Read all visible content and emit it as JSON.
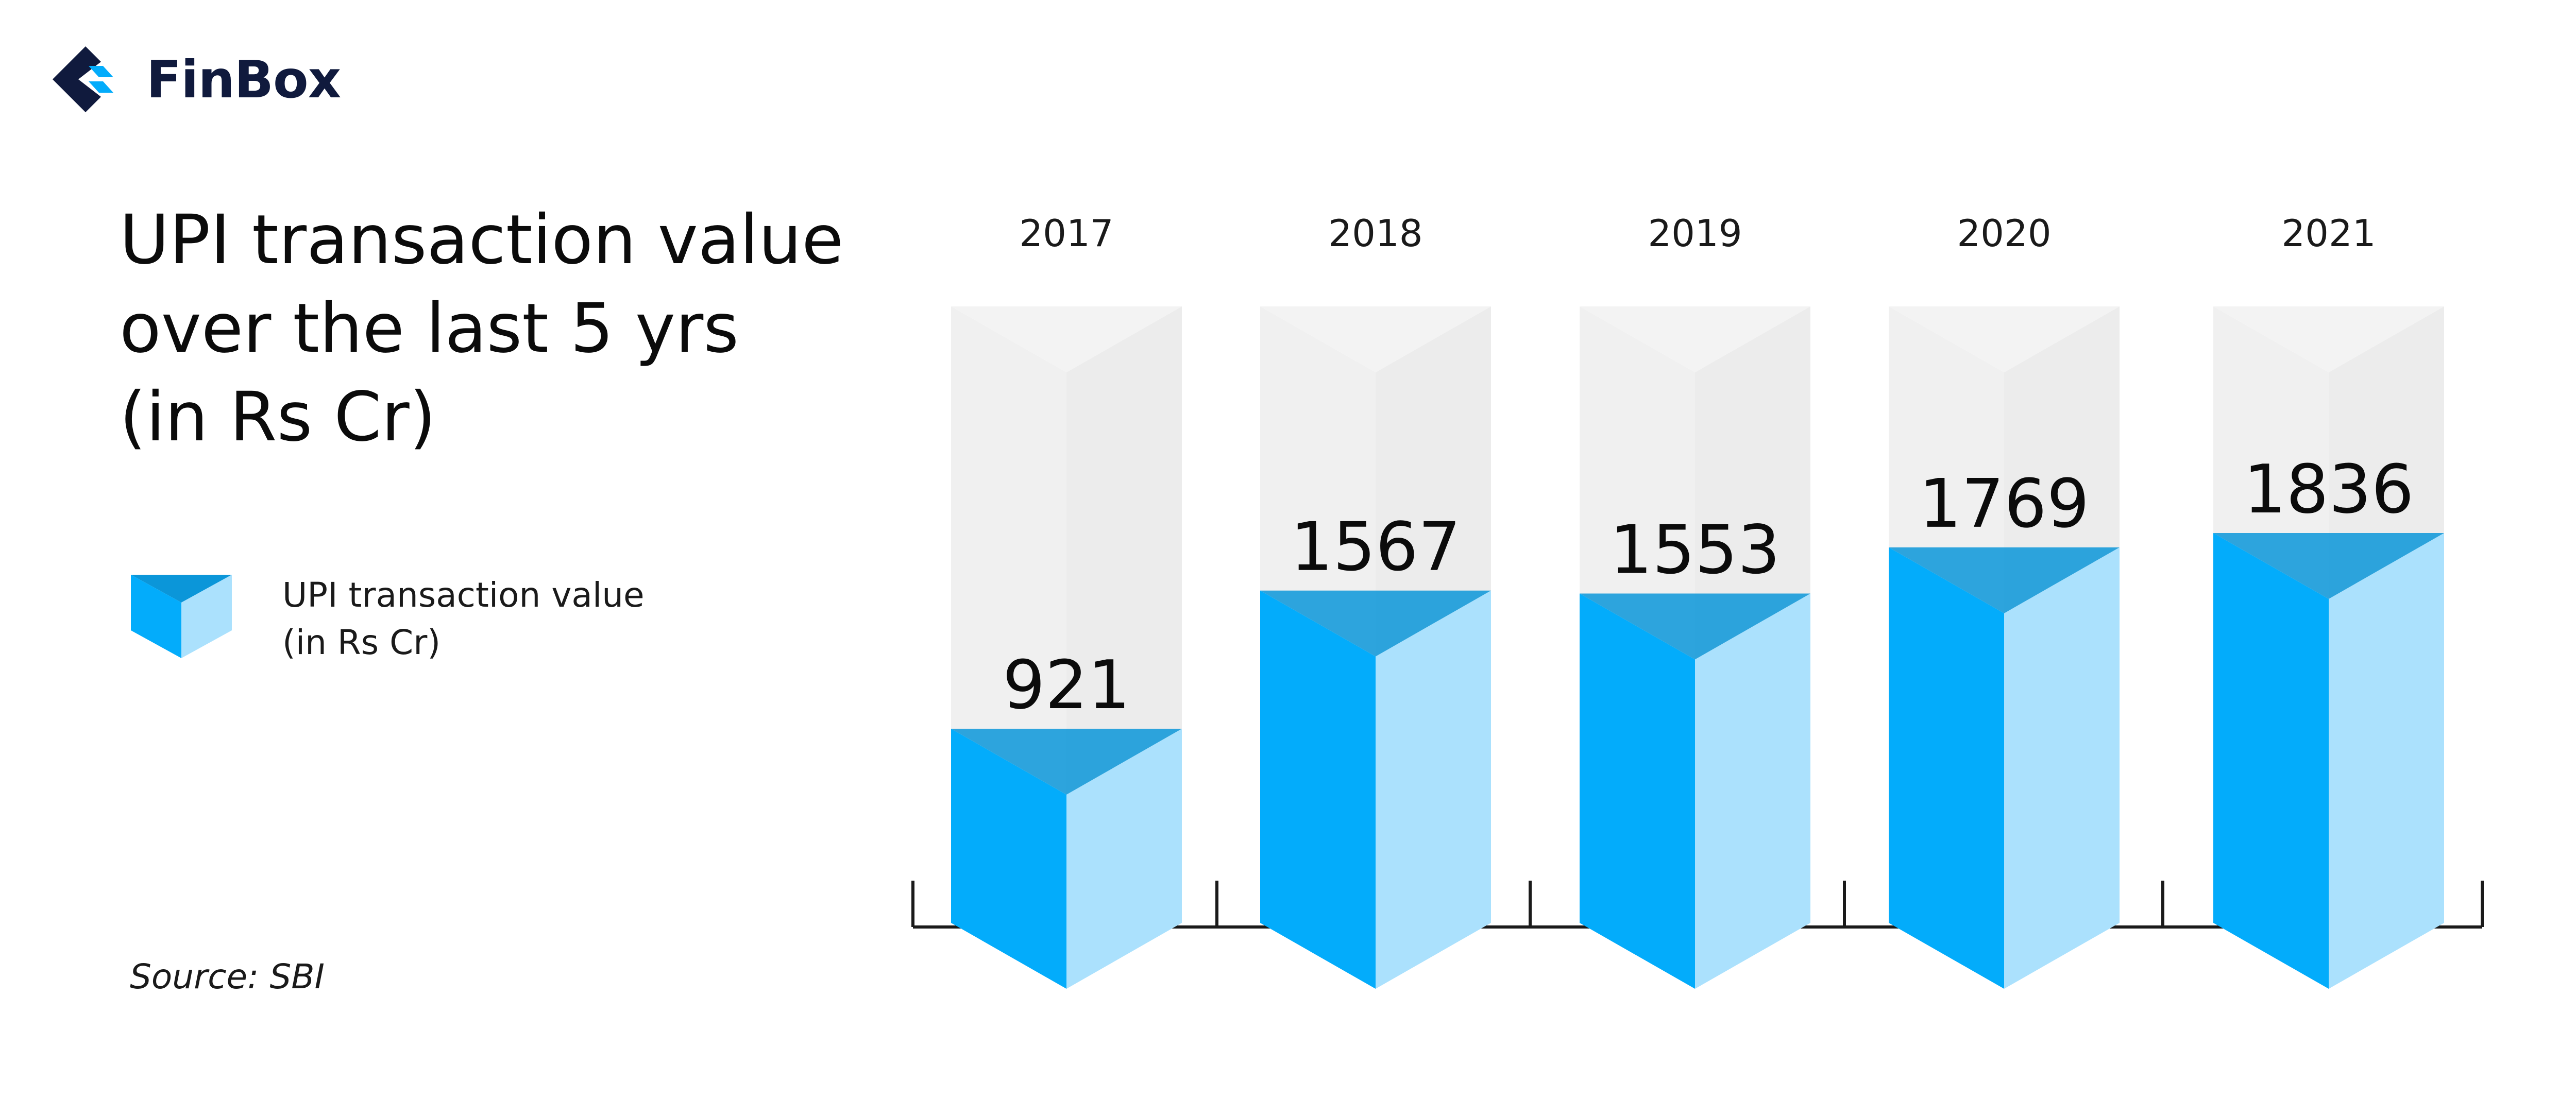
{
  "brand": {
    "name": "FinBox"
  },
  "colors": {
    "bar_front": "#03acfb",
    "bar_side": "#abe1fd",
    "bar_top": "#0b96d9",
    "container_front": "#f0f0f0",
    "container_side": "#e6e6e6",
    "axis": "#1a1a1a",
    "brand_dark": "#101a3d"
  },
  "legend": {
    "line1": "UPI transaction value",
    "line2": "(in Rs Cr)"
  },
  "source": "Source: SBI",
  "chart_data": {
    "type": "bar",
    "title_lines": [
      "UPI transaction value",
      "over the last 5 yrs",
      "(in Rs Cr)"
    ],
    "categories": [
      "2017",
      "2018",
      "2019",
      "2020",
      "2021"
    ],
    "series": [
      {
        "name": "UPI transaction value (in Rs Cr)",
        "values": [
          921,
          1567,
          1553,
          1769,
          1836
        ]
      }
    ],
    "data_labels": [
      "921",
      "1567",
      "1553",
      "1769",
      "1836"
    ],
    "grid": false
  }
}
